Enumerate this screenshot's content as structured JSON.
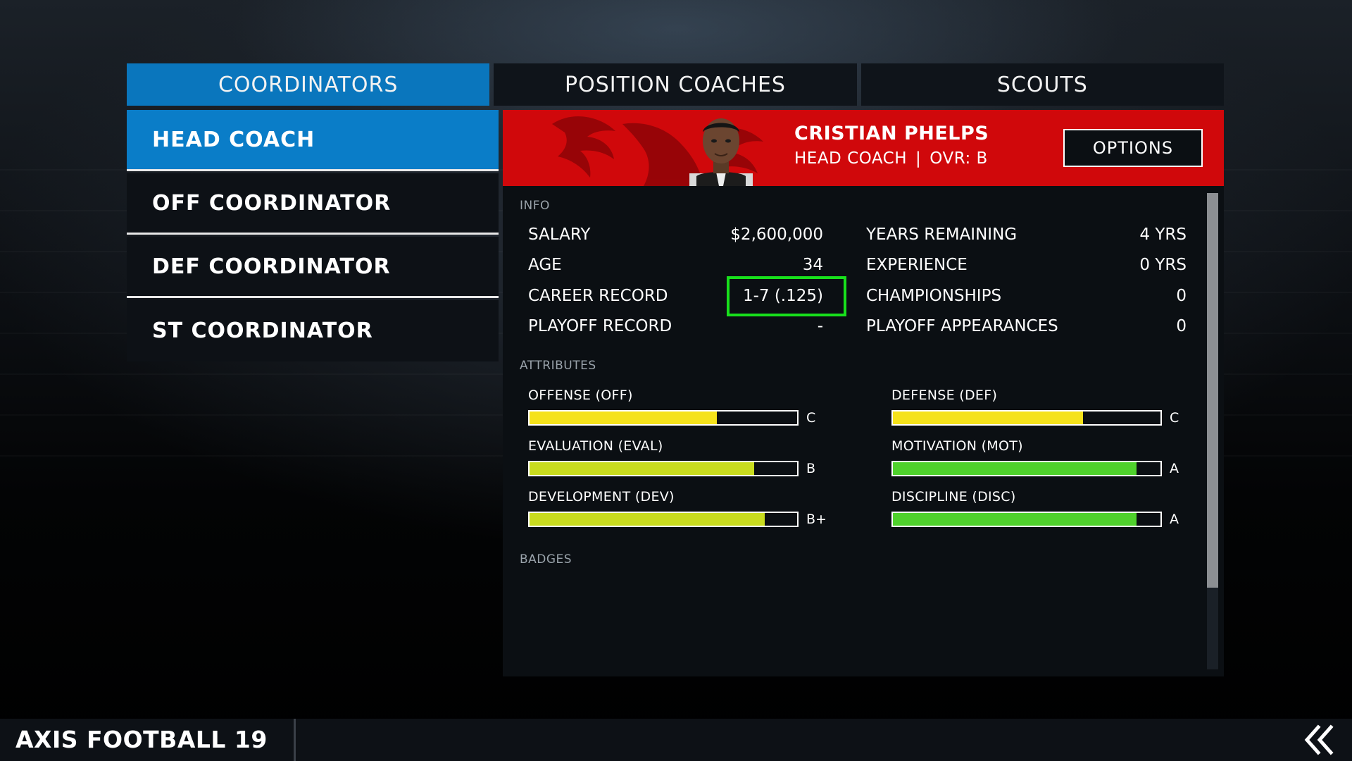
{
  "tabs": [
    {
      "label": "COORDINATORS",
      "active": true
    },
    {
      "label": "POSITION COACHES",
      "active": false
    },
    {
      "label": "SCOUTS",
      "active": false
    }
  ],
  "roles": [
    {
      "label": "HEAD COACH",
      "active": true
    },
    {
      "label": "OFF COORDINATOR",
      "active": false
    },
    {
      "label": "DEF COORDINATOR",
      "active": false
    },
    {
      "label": "ST COORDINATOR",
      "active": false
    }
  ],
  "coach": {
    "name": "CRISTIAN PHELPS",
    "role": "HEAD COACH",
    "separator": "|",
    "ovr": "OVR: B"
  },
  "options_label": "OPTIONS",
  "sections": {
    "info": "INFO",
    "attributes": "ATTRIBUTES",
    "badges": "BADGES"
  },
  "info": {
    "left": [
      {
        "label": "SALARY",
        "value": "$2,600,000"
      },
      {
        "label": "AGE",
        "value": "34"
      },
      {
        "label": "CAREER RECORD",
        "value": "1-7 (.125)"
      },
      {
        "label": "PLAYOFF RECORD",
        "value": "-"
      }
    ],
    "right": [
      {
        "label": "YEARS REMAINING",
        "value": "4 YRS"
      },
      {
        "label": "EXPERIENCE",
        "value": "0 YRS"
      },
      {
        "label": "CHAMPIONSHIPS",
        "value": "0"
      },
      {
        "label": "PLAYOFF APPEARANCES",
        "value": "0"
      }
    ]
  },
  "attributes": {
    "left": [
      {
        "label": "OFFENSE (OFF)",
        "grade": "C",
        "level": 0.7,
        "color": "#f5e21b"
      },
      {
        "label": "EVALUATION (EVAL)",
        "grade": "B",
        "level": 0.84,
        "color": "#c9dc1f"
      },
      {
        "label": "DEVELOPMENT (DEV)",
        "grade": "B+",
        "level": 0.88,
        "color": "#c9dc1f"
      }
    ],
    "right": [
      {
        "label": "DEFENSE (DEF)",
        "grade": "C",
        "level": 0.71,
        "color": "#f5e21b"
      },
      {
        "label": "MOTIVATION (MOT)",
        "grade": "A",
        "level": 0.91,
        "color": "#4fd12c"
      },
      {
        "label": "DISCIPLINE (DISC)",
        "grade": "A",
        "level": 0.91,
        "color": "#4fd12c"
      }
    ]
  },
  "footer": {
    "title": "AXIS FOOTBALL 19"
  },
  "colors": {
    "accent_blue": "#0a76bd",
    "banner_red": "#d0080b",
    "highlight_green": "#18e01c"
  },
  "icons": {
    "back": "double-chevron-left-icon"
  }
}
